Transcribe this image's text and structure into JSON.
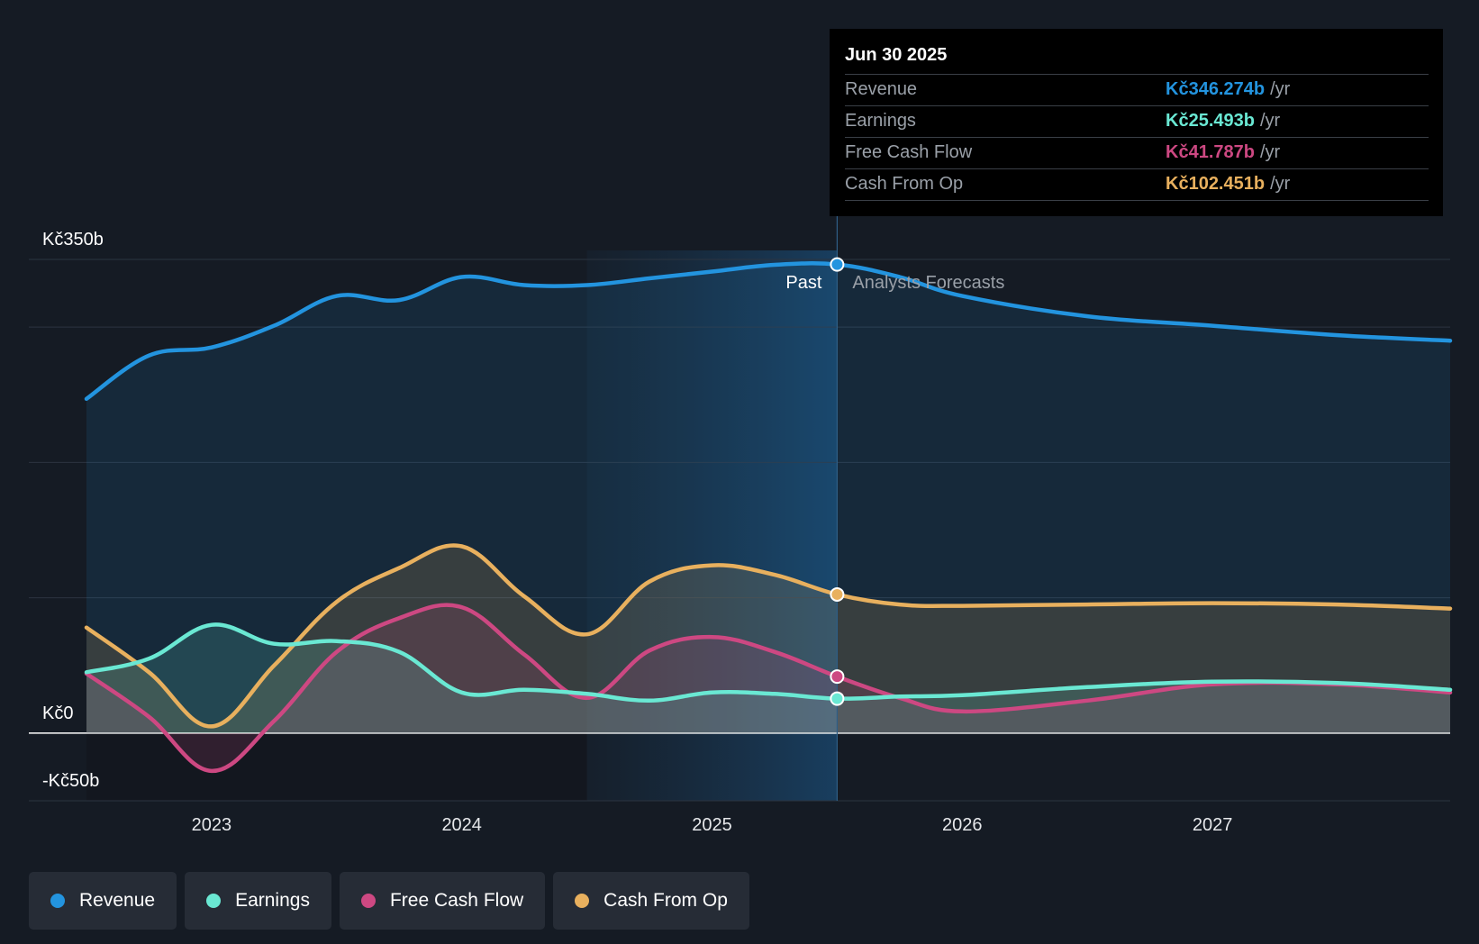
{
  "chart_data": {
    "type": "line",
    "title": "",
    "x_range": [
      2022.5,
      2027.95
    ],
    "ylim": [
      -50,
      350
    ],
    "y_tick_labels": [
      {
        "value": 350,
        "label": "Kč350b"
      },
      {
        "value": 0,
        "label": "Kč0"
      },
      {
        "value": -50,
        "label": "-Kč50b"
      }
    ],
    "gridline_values": [
      350,
      300,
      200,
      100,
      0,
      -50
    ],
    "x_ticks": [
      {
        "value": 2023,
        "label": "2023"
      },
      {
        "value": 2024,
        "label": "2024"
      },
      {
        "value": 2025,
        "label": "2025"
      },
      {
        "value": 2026,
        "label": "2026"
      },
      {
        "value": 2027,
        "label": "2027"
      }
    ],
    "past_boundary": 2025.5,
    "highlight_start": 2024.5,
    "period_labels": {
      "past": "Past",
      "forecast": "Analysts Forecasts"
    },
    "series": [
      {
        "name": "Revenue",
        "color": "#2394df",
        "fill": true,
        "points": [
          [
            2022.5,
            247
          ],
          [
            2022.75,
            279
          ],
          [
            2023.0,
            285
          ],
          [
            2023.25,
            301
          ],
          [
            2023.5,
            323
          ],
          [
            2023.75,
            320
          ],
          [
            2024.0,
            337
          ],
          [
            2024.25,
            331
          ],
          [
            2024.5,
            331
          ],
          [
            2024.75,
            336
          ],
          [
            2025.0,
            341
          ],
          [
            2025.25,
            346
          ],
          [
            2025.5,
            346.274
          ],
          [
            2025.75,
            337
          ],
          [
            2026.0,
            323
          ],
          [
            2026.5,
            308
          ],
          [
            2027.0,
            301
          ],
          [
            2027.5,
            294
          ],
          [
            2027.95,
            290
          ]
        ]
      },
      {
        "name": "Cash From Op",
        "color": "#e8b05e",
        "fill": true,
        "points": [
          [
            2022.5,
            78
          ],
          [
            2022.75,
            45
          ],
          [
            2023.0,
            5
          ],
          [
            2023.25,
            50
          ],
          [
            2023.5,
            97
          ],
          [
            2023.75,
            122
          ],
          [
            2024.0,
            138
          ],
          [
            2024.25,
            101
          ],
          [
            2024.5,
            73
          ],
          [
            2024.75,
            112
          ],
          [
            2025.0,
            124
          ],
          [
            2025.25,
            117
          ],
          [
            2025.5,
            102.451
          ],
          [
            2025.75,
            95
          ],
          [
            2026.0,
            94
          ],
          [
            2026.5,
            95
          ],
          [
            2027.0,
            96
          ],
          [
            2027.5,
            95
          ],
          [
            2027.95,
            92
          ]
        ]
      },
      {
        "name": "Free Cash Flow",
        "color": "#cd4882",
        "fill": true,
        "points": [
          [
            2022.5,
            44
          ],
          [
            2022.75,
            12
          ],
          [
            2023.0,
            -28
          ],
          [
            2023.25,
            9
          ],
          [
            2023.5,
            60
          ],
          [
            2023.75,
            85
          ],
          [
            2024.0,
            93
          ],
          [
            2024.25,
            58
          ],
          [
            2024.5,
            26
          ],
          [
            2024.75,
            61
          ],
          [
            2025.0,
            71
          ],
          [
            2025.25,
            60
          ],
          [
            2025.5,
            41.787
          ],
          [
            2025.75,
            26
          ],
          [
            2026.0,
            16
          ],
          [
            2026.5,
            24
          ],
          [
            2027.0,
            36
          ],
          [
            2027.5,
            36
          ],
          [
            2027.95,
            30
          ]
        ]
      },
      {
        "name": "Earnings",
        "color": "#6ae8d3",
        "fill": true,
        "points": [
          [
            2022.5,
            45
          ],
          [
            2022.75,
            55
          ],
          [
            2023.0,
            80
          ],
          [
            2023.25,
            66
          ],
          [
            2023.5,
            68
          ],
          [
            2023.75,
            60
          ],
          [
            2024.0,
            30
          ],
          [
            2024.25,
            32
          ],
          [
            2024.5,
            29
          ],
          [
            2024.75,
            24
          ],
          [
            2025.0,
            30
          ],
          [
            2025.25,
            29
          ],
          [
            2025.5,
            25.493
          ],
          [
            2025.75,
            27
          ],
          [
            2026.0,
            28
          ],
          [
            2026.5,
            34
          ],
          [
            2027.0,
            38
          ],
          [
            2027.5,
            37
          ],
          [
            2027.95,
            32
          ]
        ]
      }
    ],
    "highlight_points": [
      {
        "series": "Revenue",
        "x": 2025.5,
        "y": 346.274
      },
      {
        "series": "Cash From Op",
        "x": 2025.5,
        "y": 102.451
      },
      {
        "series": "Free Cash Flow",
        "x": 2025.5,
        "y": 41.787
      },
      {
        "series": "Earnings",
        "x": 2025.5,
        "y": 25.493
      }
    ]
  },
  "tooltip": {
    "date": "Jun 30 2025",
    "rows": [
      {
        "name": "Revenue",
        "value": "Kč346.274b",
        "unit": "/yr",
        "color": "#2394df"
      },
      {
        "name": "Earnings",
        "value": "Kč25.493b",
        "unit": "/yr",
        "color": "#6ae8d3"
      },
      {
        "name": "Free Cash Flow",
        "value": "Kč41.787b",
        "unit": "/yr",
        "color": "#cd4882"
      },
      {
        "name": "Cash From Op",
        "value": "Kč102.451b",
        "unit": "/yr",
        "color": "#e8b05e"
      }
    ]
  },
  "legend": {
    "items": [
      {
        "label": "Revenue",
        "color": "#2394df"
      },
      {
        "label": "Earnings",
        "color": "#6ae8d3"
      },
      {
        "label": "Free Cash Flow",
        "color": "#cd4882"
      },
      {
        "label": "Cash From Op",
        "color": "#e8b05e"
      }
    ]
  }
}
